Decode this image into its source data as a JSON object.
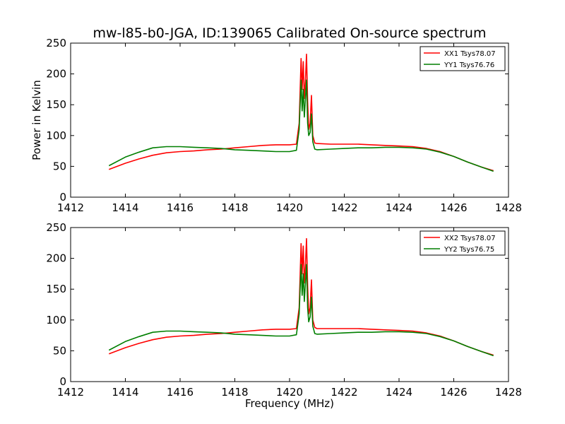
{
  "figure": {
    "title": "mw-l85-b0-JGA, ID:139065 Calibrated On-source spectrum"
  },
  "chart_data": [
    {
      "type": "line",
      "title": "mw-l85-b0-JGA, ID:139065 Calibrated On-source spectrum",
      "xlabel": "",
      "ylabel": "Power in Kelvin",
      "xlim": [
        1412,
        1428
      ],
      "ylim": [
        0,
        250
      ],
      "xticks": [
        1412,
        1414,
        1416,
        1418,
        1420,
        1422,
        1424,
        1426,
        1428
      ],
      "yticks": [
        0,
        50,
        100,
        150,
        200,
        250
      ],
      "grid": false,
      "legend_position": "top-right",
      "series": [
        {
          "name": "XX1 Tsys78.07",
          "color": "#ff0000",
          "x": [
            1413.4,
            1414.0,
            1414.5,
            1415.0,
            1415.5,
            1416.0,
            1416.5,
            1417.0,
            1417.5,
            1418.0,
            1418.5,
            1419.0,
            1419.5,
            1420.0,
            1420.25,
            1420.35,
            1420.42,
            1420.46,
            1420.5,
            1420.54,
            1420.58,
            1420.62,
            1420.66,
            1420.7,
            1420.75,
            1420.8,
            1420.85,
            1420.92,
            1421.0,
            1421.5,
            1422.0,
            1422.5,
            1423.0,
            1423.5,
            1424.0,
            1424.5,
            1425.0,
            1425.5,
            1426.0,
            1426.5,
            1427.0,
            1427.45
          ],
          "values": [
            45,
            55,
            62,
            68,
            72,
            74,
            75,
            77,
            78,
            80,
            82,
            84,
            85,
            85,
            86,
            120,
            225,
            175,
            220,
            160,
            190,
            232,
            155,
            110,
            120,
            165,
            100,
            88,
            87,
            86,
            86,
            86,
            85,
            84,
            83,
            82,
            79,
            74,
            66,
            57,
            49,
            43
          ]
        },
        {
          "name": "YY1 Tsys76.76",
          "color": "#007f00",
          "x": [
            1413.4,
            1414.0,
            1414.5,
            1415.0,
            1415.5,
            1416.0,
            1416.5,
            1417.0,
            1417.5,
            1418.0,
            1418.5,
            1419.0,
            1419.5,
            1420.0,
            1420.25,
            1420.35,
            1420.42,
            1420.46,
            1420.5,
            1420.54,
            1420.58,
            1420.62,
            1420.66,
            1420.7,
            1420.75,
            1420.8,
            1420.85,
            1420.92,
            1421.0,
            1421.5,
            1422.0,
            1422.5,
            1423.0,
            1423.5,
            1424.0,
            1424.5,
            1425.0,
            1425.5,
            1426.0,
            1426.5,
            1427.0,
            1427.45
          ],
          "values": [
            51,
            65,
            73,
            80,
            82,
            82,
            81,
            80,
            79,
            77,
            76,
            75,
            74,
            74,
            76,
            110,
            190,
            140,
            175,
            130,
            160,
            190,
            120,
            100,
            105,
            135,
            90,
            78,
            77,
            78,
            79,
            80,
            80,
            81,
            81,
            80,
            78,
            73,
            66,
            57,
            49,
            42
          ]
        }
      ]
    },
    {
      "type": "line",
      "title": "",
      "xlabel": "Frequency (MHz)",
      "ylabel": "",
      "xlim": [
        1412,
        1428
      ],
      "ylim": [
        0,
        250
      ],
      "xticks": [
        1412,
        1414,
        1416,
        1418,
        1420,
        1422,
        1424,
        1426,
        1428
      ],
      "yticks": [
        0,
        50,
        100,
        150,
        200,
        250
      ],
      "grid": false,
      "legend_position": "top-right",
      "series": [
        {
          "name": "XX2 Tsys78.07",
          "color": "#ff0000",
          "x": [
            1413.4,
            1414.0,
            1414.5,
            1415.0,
            1415.5,
            1416.0,
            1416.5,
            1417.0,
            1417.5,
            1418.0,
            1418.5,
            1419.0,
            1419.5,
            1420.0,
            1420.25,
            1420.35,
            1420.42,
            1420.46,
            1420.5,
            1420.54,
            1420.58,
            1420.62,
            1420.66,
            1420.7,
            1420.75,
            1420.8,
            1420.85,
            1420.92,
            1421.0,
            1421.5,
            1422.0,
            1422.5,
            1423.0,
            1423.5,
            1424.0,
            1424.5,
            1425.0,
            1425.5,
            1426.0,
            1426.5,
            1427.0,
            1427.45
          ],
          "values": [
            45,
            55,
            62,
            68,
            72,
            74,
            75,
            77,
            78,
            80,
            82,
            84,
            85,
            85,
            86,
            120,
            224,
            175,
            220,
            160,
            190,
            232,
            155,
            110,
            120,
            165,
            100,
            88,
            86,
            86,
            86,
            86,
            85,
            84,
            83,
            82,
            79,
            74,
            66,
            57,
            49,
            43
          ]
        },
        {
          "name": "YY2 Tsys76.75",
          "color": "#007f00",
          "x": [
            1413.4,
            1414.0,
            1414.5,
            1415.0,
            1415.5,
            1416.0,
            1416.5,
            1417.0,
            1417.5,
            1418.0,
            1418.5,
            1419.0,
            1419.5,
            1420.0,
            1420.25,
            1420.35,
            1420.42,
            1420.46,
            1420.5,
            1420.54,
            1420.58,
            1420.62,
            1420.66,
            1420.7,
            1420.75,
            1420.8,
            1420.85,
            1420.92,
            1421.0,
            1421.5,
            1422.0,
            1422.5,
            1423.0,
            1423.5,
            1424.0,
            1424.5,
            1425.0,
            1425.5,
            1426.0,
            1426.5,
            1427.0,
            1427.45
          ],
          "values": [
            51,
            65,
            73,
            80,
            82,
            82,
            81,
            80,
            79,
            77,
            76,
            75,
            74,
            74,
            76,
            110,
            190,
            140,
            175,
            130,
            160,
            190,
            120,
            97,
            105,
            137,
            90,
            78,
            77,
            78,
            79,
            80,
            80,
            81,
            81,
            80,
            78,
            73,
            66,
            57,
            49,
            42
          ]
        }
      ]
    }
  ]
}
